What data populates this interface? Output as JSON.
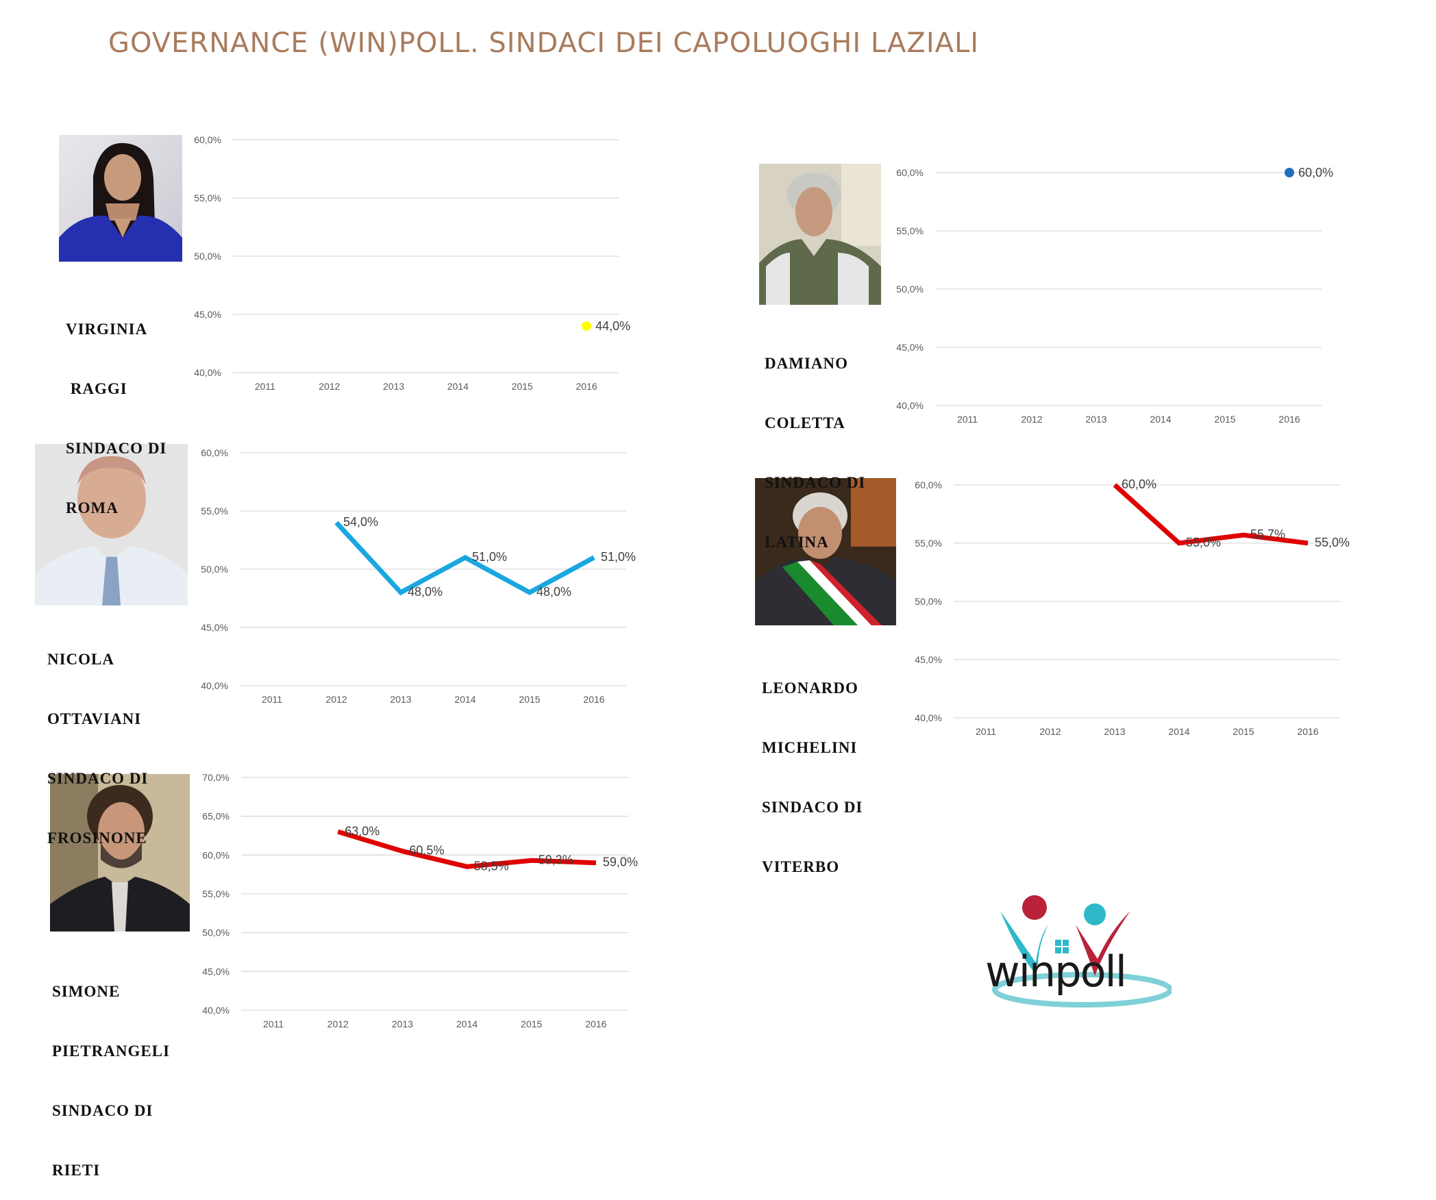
{
  "title": "GOVERNANCE (WIN)POLL. SINDACI DEI CAPOLUOGHI LAZIALI",
  "colors": {
    "title": "#a97b5c",
    "grid": "#d9d9d9",
    "tick": "#595959",
    "roma": "#ffff00",
    "latina": "#1f6fbf",
    "frosinone": "#1aa7e0",
    "viterbo": "#e00000",
    "rieti": "#e00000"
  },
  "panels": [
    {
      "id": "roma",
      "caption": [
        "VIRGINIA",
        " RAGGI",
        "SINDACO DI",
        "ROMA"
      ],
      "photo_icon": "portrait-woman-icon"
    },
    {
      "id": "latina",
      "caption": [
        "DAMIANO",
        "COLETTA",
        "SINDACO DI",
        "LATINA"
      ],
      "photo_icon": "portrait-man-icon"
    },
    {
      "id": "frosinone",
      "caption": [
        "NICOLA",
        "OTTAVIANI",
        "SINDACO DI",
        "FROSINONE"
      ],
      "photo_icon": "portrait-man-icon"
    },
    {
      "id": "viterbo",
      "caption": [
        "LEONARDO",
        "MICHELINI",
        "SINDACO DI",
        "VITERBO"
      ],
      "photo_icon": "portrait-man-sash-icon"
    },
    {
      "id": "rieti",
      "caption": [
        "SIMONE",
        "PIETRANGELI",
        "SINDACO DI",
        "RIETI"
      ],
      "photo_icon": "portrait-man-beard-icon"
    }
  ],
  "chart_data": [
    {
      "id": "roma",
      "type": "line",
      "x": [
        "2011",
        "2012",
        "2013",
        "2014",
        "2015",
        "2016"
      ],
      "y_ticks": [
        "60,0%",
        "55,0%",
        "50,0%",
        "45,0%",
        "40,0%"
      ],
      "ylim": [
        40,
        60
      ],
      "series": [
        {
          "values": [
            null,
            null,
            null,
            null,
            null,
            44.0
          ],
          "labels": [
            null,
            null,
            null,
            null,
            null,
            "44,0%"
          ],
          "color": "#ffff00",
          "marker_only": true
        }
      ]
    },
    {
      "id": "latina",
      "type": "line",
      "x": [
        "2011",
        "2012",
        "2013",
        "2014",
        "2015",
        "2016"
      ],
      "y_ticks": [
        "60,0%",
        "55,0%",
        "50,0%",
        "45,0%",
        "40,0%"
      ],
      "ylim": [
        40,
        60
      ],
      "series": [
        {
          "values": [
            null,
            null,
            null,
            null,
            null,
            60.0
          ],
          "labels": [
            null,
            null,
            null,
            null,
            null,
            "60,0%"
          ],
          "color": "#1f6fbf",
          "marker_only": true
        }
      ]
    },
    {
      "id": "frosinone",
      "type": "line",
      "x": [
        "2011",
        "2012",
        "2013",
        "2014",
        "2015",
        "2016"
      ],
      "y_ticks": [
        "60,0%",
        "55,0%",
        "50,0%",
        "45,0%",
        "40,0%"
      ],
      "ylim": [
        40,
        60
      ],
      "series": [
        {
          "values": [
            null,
            54.0,
            48.0,
            51.0,
            48.0,
            51.0
          ],
          "labels": [
            null,
            "54,0%",
            "48,0%",
            "51,0%",
            "48,0%",
            "51,0%"
          ],
          "color": "#1aa7e0"
        }
      ]
    },
    {
      "id": "viterbo",
      "type": "line",
      "x": [
        "2011",
        "2012",
        "2013",
        "2014",
        "2015",
        "2016"
      ],
      "y_ticks": [
        "60,0%",
        "55,0%",
        "50,0%",
        "45,0%",
        "40,0%"
      ],
      "ylim": [
        40,
        60
      ],
      "series": [
        {
          "values": [
            null,
            null,
            60.0,
            55.0,
            55.7,
            55.0
          ],
          "labels": [
            null,
            null,
            "60,0%",
            "55,0%",
            "55,7%",
            "55,0%"
          ],
          "color": "#e00000"
        }
      ]
    },
    {
      "id": "rieti",
      "type": "line",
      "x": [
        "2011",
        "2012",
        "2013",
        "2014",
        "2015",
        "2016"
      ],
      "y_ticks": [
        "70,0%",
        "65,0%",
        "60,0%",
        "55,0%",
        "50,0%",
        "45,0%",
        "40,0%"
      ],
      "ylim": [
        40,
        70
      ],
      "series": [
        {
          "values": [
            null,
            63.0,
            60.5,
            58.5,
            59.3,
            59.0
          ],
          "labels": [
            null,
            "63,0%",
            "60,5%",
            "58,5%",
            "59,3%",
            "59,0%"
          ],
          "color": "#e00000"
        }
      ]
    }
  ],
  "logo": {
    "text": "winpoll",
    "icon": "winpoll-logo-icon"
  }
}
